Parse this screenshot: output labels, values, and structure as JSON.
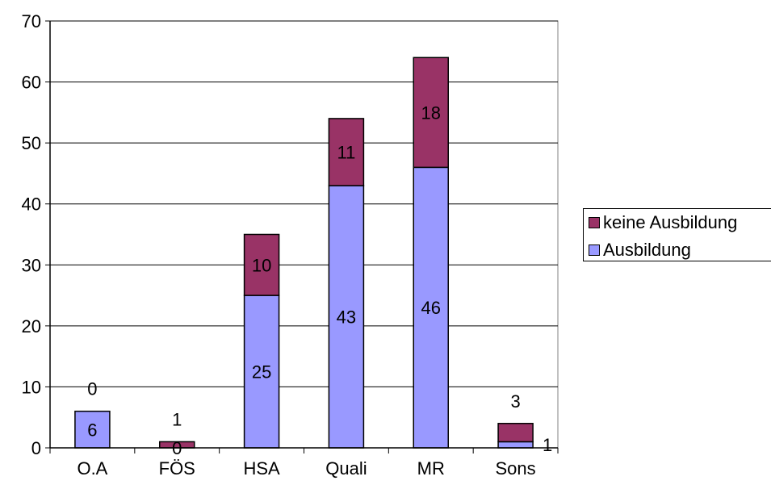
{
  "chart_data": {
    "type": "bar",
    "stacked": true,
    "title": "",
    "xlabel": "",
    "ylabel": "",
    "categories": [
      "O.A",
      "FÖS",
      "HSA",
      "Quali",
      "MR",
      "Sons"
    ],
    "ylim": [
      0,
      70
    ],
    "yticks": [
      0,
      10,
      20,
      30,
      40,
      50,
      60,
      70
    ],
    "grid": true,
    "legend_position": "right",
    "series": [
      {
        "name": "Ausbildung",
        "values": [
          6,
          0,
          25,
          43,
          46,
          1
        ],
        "color": "#9999ff"
      },
      {
        "name": "keine Ausbildung",
        "values": [
          0,
          1,
          10,
          11,
          18,
          3
        ],
        "color": "#993366"
      }
    ]
  }
}
